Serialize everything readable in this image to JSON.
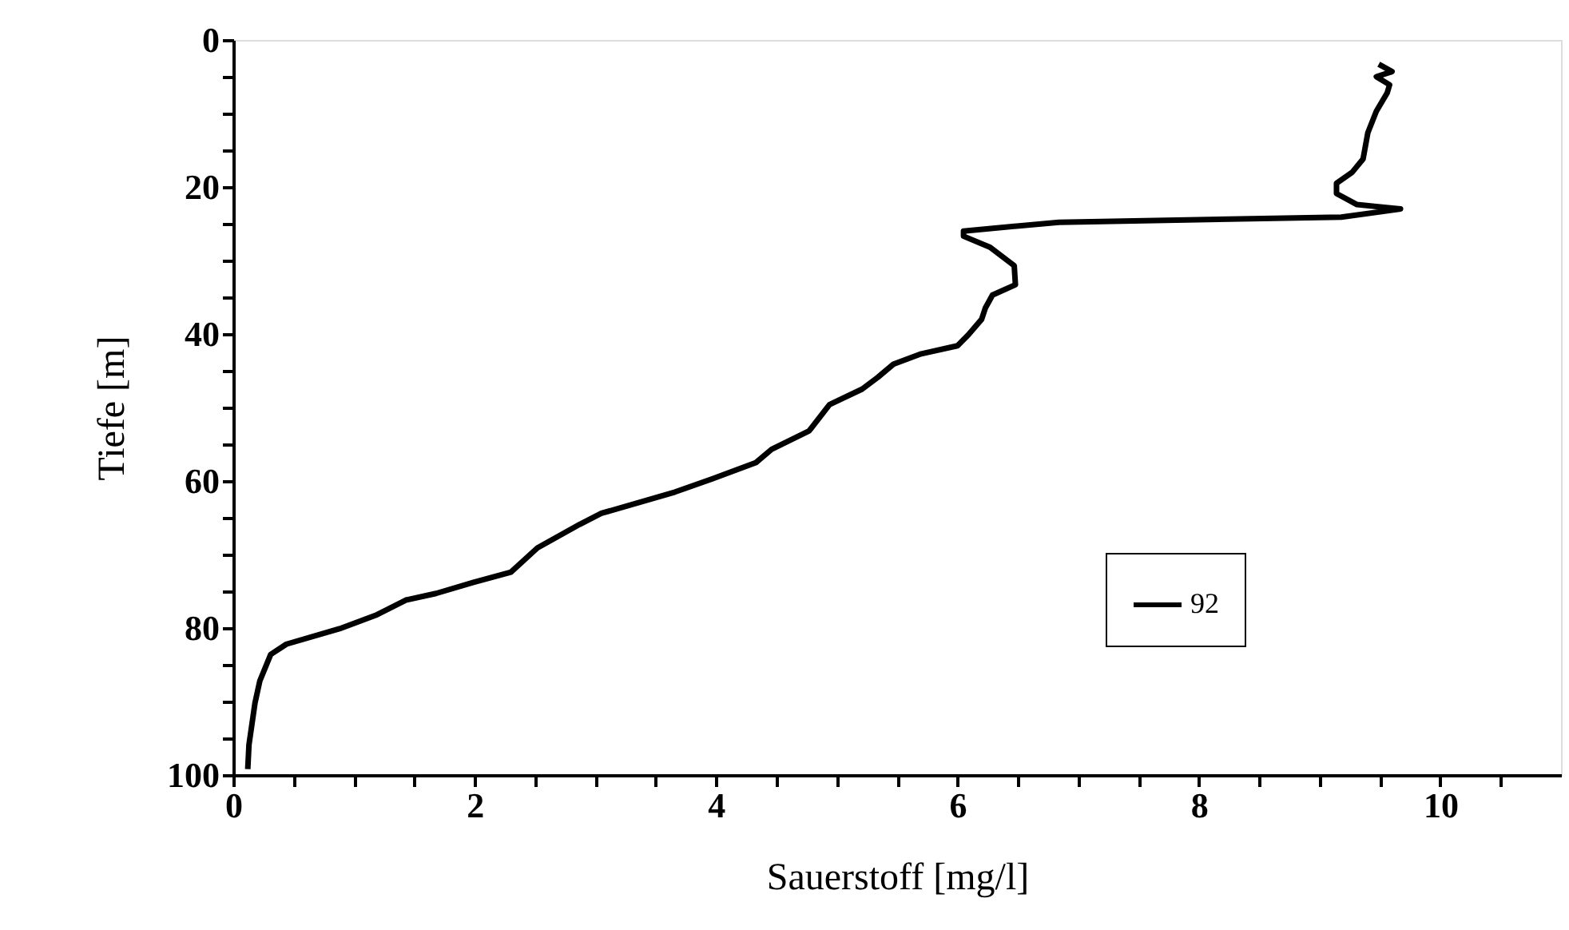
{
  "chart_data": {
    "type": "line",
    "xlabel": "Sauerstoff [mg/l]",
    "ylabel": "Tiefe [m]",
    "xlim": [
      0,
      11
    ],
    "xticks": [
      0,
      {
        "value": 0.5,
        "label": null
      },
      {
        "value": 1,
        "label": null
      },
      {
        "value": 1.5,
        "label": null
      },
      2,
      {
        "value": 2.5,
        "label": null
      },
      {
        "value": 3,
        "label": null
      },
      {
        "value": 3.5,
        "label": null
      },
      4,
      {
        "value": 4.5,
        "label": null
      },
      {
        "value": 5,
        "label": null
      },
      {
        "value": 5.5,
        "label": null
      },
      6,
      {
        "value": 6.5,
        "label": null
      },
      {
        "value": 7,
        "label": null
      },
      {
        "value": 7.5,
        "label": null
      },
      8,
      {
        "value": 8.5,
        "label": null
      },
      {
        "value": 9,
        "label": null
      },
      {
        "value": 9.5,
        "label": null
      },
      10,
      {
        "value": 10.5,
        "label": null
      }
    ],
    "ylim": [
      100,
      0
    ],
    "yticks": [
      0,
      {
        "value": 5,
        "label": null
      },
      {
        "value": 10,
        "label": null
      },
      {
        "value": 15,
        "label": null
      },
      20,
      {
        "value": 25,
        "label": null
      },
      {
        "value": 30,
        "label": null
      },
      {
        "value": 35,
        "label": null
      },
      40,
      {
        "value": 45,
        "label": null
      },
      {
        "value": 50,
        "label": null
      },
      {
        "value": 55,
        "label": null
      },
      60,
      {
        "value": 65,
        "label": null
      },
      {
        "value": 70,
        "label": null
      },
      {
        "value": 75,
        "label": null
      },
      80,
      {
        "value": 85,
        "label": null
      },
      {
        "value": 90,
        "label": null
      },
      {
        "value": 95,
        "label": null
      },
      100
    ],
    "legend": "bottom right",
    "grid": false,
    "marker": "none",
    "line_style": "solid",
    "series": [
      {
        "name": "92",
        "color": "#000000",
        "x": [
          9.49,
          9.6,
          9.47,
          9.58,
          9.56,
          9.47,
          9.4,
          9.36,
          9.27,
          9.14,
          9.14,
          9.31,
          9.67,
          9.18,
          6.84,
          6.05,
          6.05,
          6.27,
          6.47,
          6.48,
          6.29,
          6.23,
          6.2,
          6.09,
          6.0,
          5.7,
          5.47,
          5.34,
          5.21,
          4.94,
          4.77,
          4.46,
          4.33,
          3.97,
          3.66,
          3.05,
          2.87,
          2.52,
          2.3,
          1.99,
          1.68,
          1.43,
          1.19,
          0.88,
          0.44,
          0.31,
          0.22,
          0.18,
          0.13,
          0.12
        ],
        "values": [
          3.3,
          4.3,
          5,
          6.1,
          7.2,
          9.7,
          12.6,
          16.2,
          18,
          19.5,
          20.9,
          22.4,
          23,
          24.1,
          24.8,
          26,
          26.7,
          28.2,
          30.7,
          33.3,
          34.7,
          36.5,
          38,
          40.1,
          41.6,
          42.7,
          44.1,
          45.9,
          47.5,
          49.6,
          53.2,
          55.7,
          57.5,
          59.7,
          61.5,
          64.4,
          65.9,
          69.1,
          72.4,
          73.8,
          75.3,
          76.2,
          78.2,
          80.1,
          82.2,
          83.6,
          87.2,
          90.2,
          95.9,
          99.2
        ]
      }
    ]
  }
}
